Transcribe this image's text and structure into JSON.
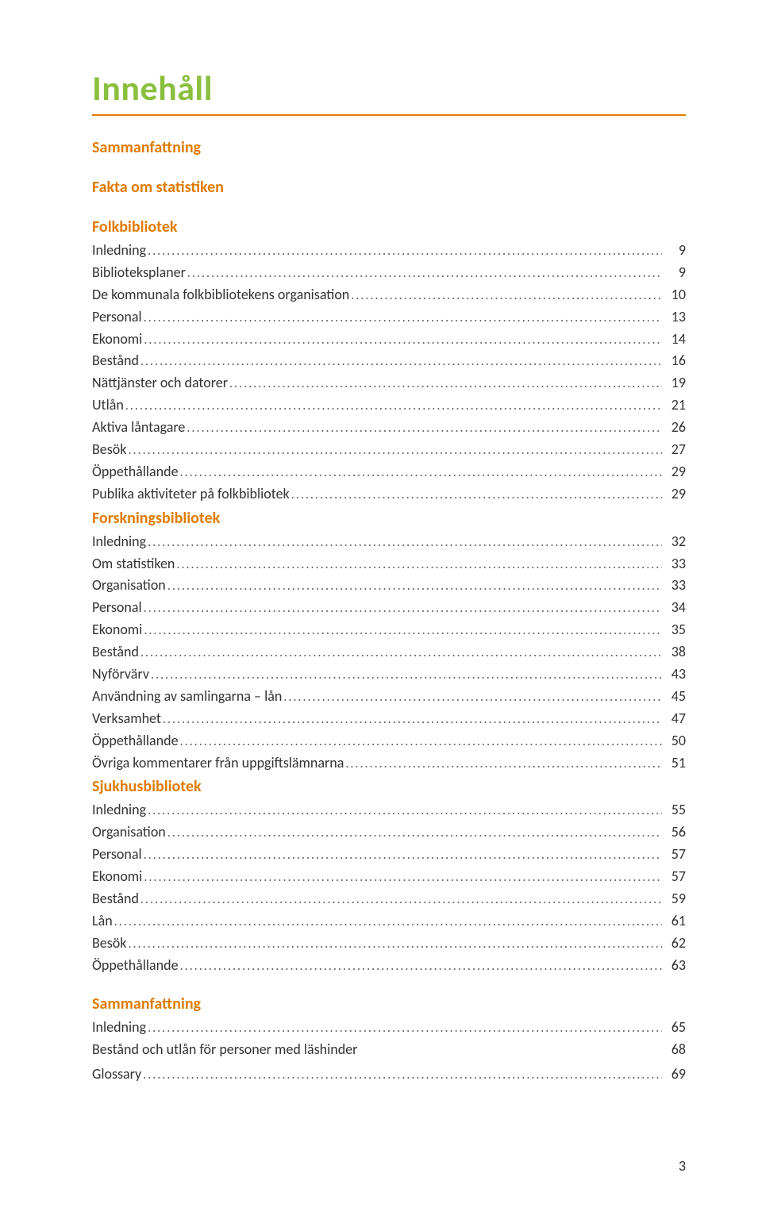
{
  "colors": {
    "title": "#8bbf3f",
    "rule": "#e07b00",
    "section": "#e07b00",
    "body": "#333333",
    "background": "#ffffff"
  },
  "title": "Innehåll",
  "page_number": "3",
  "sections": [
    {
      "type": "head",
      "label": "Sammanfattning"
    },
    {
      "type": "gap"
    },
    {
      "type": "head",
      "label": "Fakta om statistiken"
    },
    {
      "type": "gap"
    },
    {
      "type": "head",
      "label": "Folkbibliotek"
    },
    {
      "type": "entry",
      "label": "Inledning",
      "page": "9"
    },
    {
      "type": "entry",
      "label": "Biblioteksplaner",
      "page": "9"
    },
    {
      "type": "entry",
      "label": "De kommunala folkbibliotekens organisation",
      "page": "10"
    },
    {
      "type": "entry",
      "label": "Personal",
      "page": "13"
    },
    {
      "type": "entry",
      "label": "Ekonomi",
      "page": "14"
    },
    {
      "type": "entry",
      "label": "Bestånd",
      "page": "16"
    },
    {
      "type": "entry",
      "label": "Nättjänster och datorer",
      "page": "19"
    },
    {
      "type": "entry",
      "label": "Utlån",
      "page": "21"
    },
    {
      "type": "entry",
      "label": "Aktiva låntagare",
      "page": "26"
    },
    {
      "type": "entry",
      "label": "Besök",
      "page": "27"
    },
    {
      "type": "entry",
      "label": "Öppethållande",
      "page": "29"
    },
    {
      "type": "entry",
      "label": "Publika aktiviteter på folkbibliotek",
      "page": "29"
    },
    {
      "type": "head",
      "label": "Forskningsbibliotek"
    },
    {
      "type": "entry",
      "label": "Inledning",
      "page": "32"
    },
    {
      "type": "entry",
      "label": "Om statistiken",
      "page": "33"
    },
    {
      "type": "entry",
      "label": "Organisation",
      "page": "33"
    },
    {
      "type": "entry",
      "label": "Personal",
      "page": "34"
    },
    {
      "type": "entry",
      "label": "Ekonomi",
      "page": "35"
    },
    {
      "type": "entry",
      "label": "Bestånd",
      "page": "38"
    },
    {
      "type": "entry",
      "label": "Nyförvärv",
      "page": "43"
    },
    {
      "type": "entry",
      "label": "Användning av samlingarna – lån",
      "page": "45"
    },
    {
      "type": "entry",
      "label": "Verksamhet",
      "page": "47"
    },
    {
      "type": "entry",
      "label": "Öppethållande",
      "page": "50"
    },
    {
      "type": "entry",
      "label": "Övriga kommentarer från uppgiftslämnarna",
      "page": "51"
    },
    {
      "type": "head",
      "label": "Sjukhusbibliotek"
    },
    {
      "type": "entry",
      "label": "Inledning",
      "page": "55"
    },
    {
      "type": "entry",
      "label": "Organisation",
      "page": "56"
    },
    {
      "type": "entry",
      "label": "Personal",
      "page": "57"
    },
    {
      "type": "entry",
      "label": "Ekonomi",
      "page": "57"
    },
    {
      "type": "entry",
      "label": "Bestånd",
      "page": "59"
    },
    {
      "type": "entry",
      "label": "Lån",
      "page": "61"
    },
    {
      "type": "entry",
      "label": "Besök",
      "page": "62"
    },
    {
      "type": "entry",
      "label": "Öppethållande",
      "page": "63"
    },
    {
      "type": "gap"
    },
    {
      "type": "head",
      "label": "Sammanfattning"
    },
    {
      "type": "entry",
      "label": "Inledning",
      "page": "65"
    },
    {
      "type": "entry",
      "label": "Bestånd och utlån för personer med läshinder",
      "page": "68",
      "nodots": true
    },
    {
      "type": "gap-sm"
    },
    {
      "type": "entry",
      "label": "Glossary",
      "page": "69"
    }
  ]
}
